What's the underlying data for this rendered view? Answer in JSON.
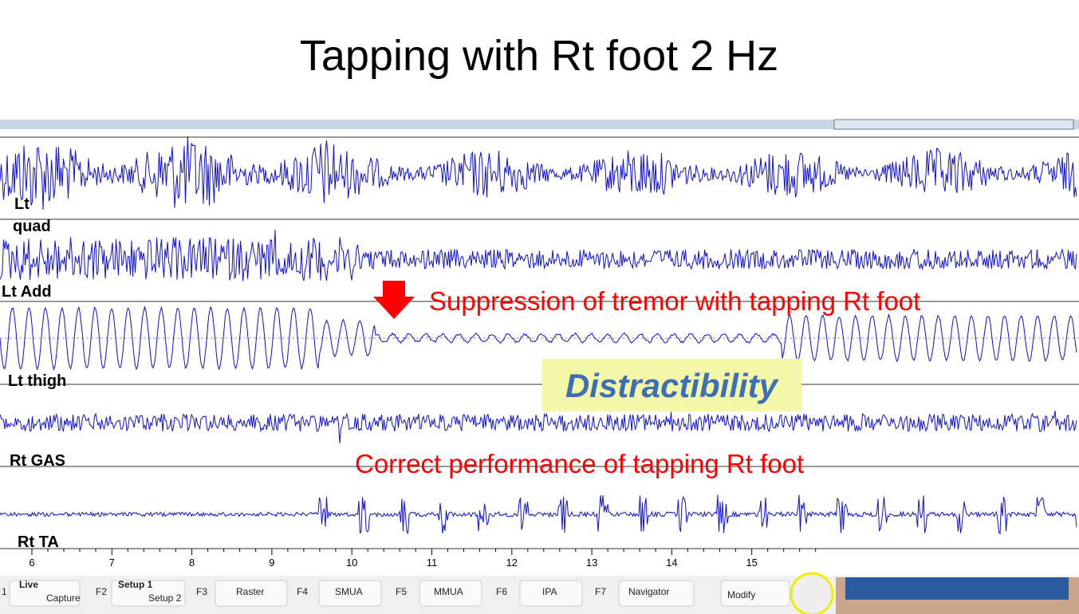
{
  "title": "Tapping with Rt foot 2 Hz",
  "channels": [
    "Lt",
    "quad",
    "Lt Add",
    "Lt thigh",
    "Rt GAS",
    "Rt TA"
  ],
  "annotations": {
    "suppression": "Suppression of tremor with tapping Rt foot",
    "distractibility": "Distractibility",
    "correct": "Correct performance of tapping Rt foot"
  },
  "axis": {
    "ticks": [
      6,
      7,
      8,
      9,
      10,
      11,
      12,
      13,
      14,
      15
    ]
  },
  "toolbar": {
    "items": [
      "1",
      "Live",
      "Capture",
      "F2",
      "Setup 1",
      "Setup 2",
      "F3",
      "Raster",
      "F4",
      "SMUA",
      "F5",
      "MMUA",
      "F6",
      "IPA",
      "F7",
      "Navigator",
      "Modify"
    ]
  }
}
